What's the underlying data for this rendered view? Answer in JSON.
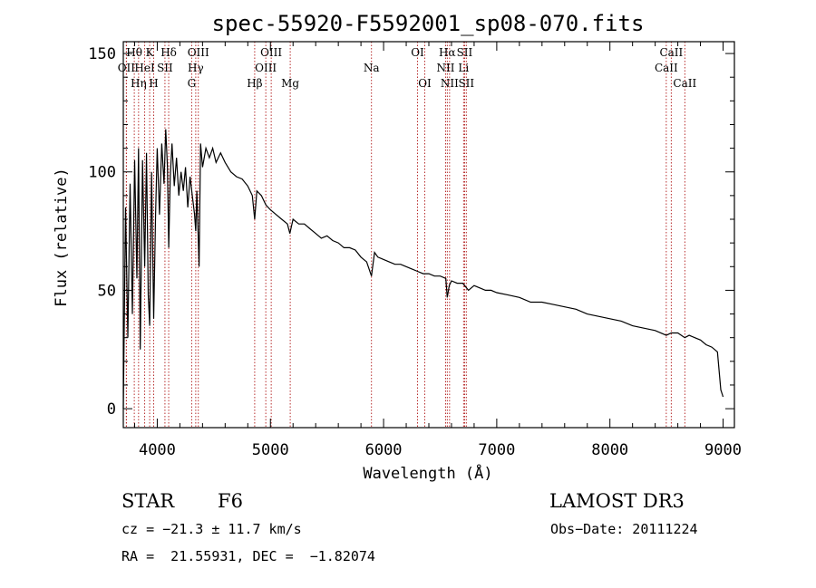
{
  "chart_data": {
    "type": "line",
    "title": "spec-55920-F5592001_sp08-070.fits",
    "xlabel": "Wavelength (Å)",
    "ylabel": "Flux (relative)",
    "xlim": [
      3700,
      9100
    ],
    "ylim": [
      -8,
      155
    ],
    "xticks": [
      4000,
      5000,
      6000,
      7000,
      8000,
      9000
    ],
    "yticks": [
      0,
      50,
      100,
      150
    ],
    "series": [
      {
        "name": "spectrum",
        "x": [
          3700,
          3720,
          3740,
          3760,
          3780,
          3800,
          3820,
          3835,
          3850,
          3870,
          3889,
          3905,
          3920,
          3933,
          3950,
          3968,
          3985,
          4000,
          4020,
          4040,
          4060,
          4075,
          4090,
          4101,
          4115,
          4130,
          4150,
          4170,
          4190,
          4210,
          4230,
          4250,
          4270,
          4290,
          4310,
          4330,
          4340,
          4350,
          4370,
          4383,
          4400,
          4430,
          4460,
          4490,
          4520,
          4560,
          4600,
          4650,
          4700,
          4750,
          4800,
          4840,
          4861,
          4880,
          4920,
          4960,
          5000,
          5050,
          5100,
          5150,
          5172,
          5200,
          5250,
          5300,
          5350,
          5400,
          5450,
          5500,
          5550,
          5600,
          5650,
          5700,
          5750,
          5800,
          5850,
          5893,
          5920,
          5950,
          6000,
          6050,
          6100,
          6150,
          6200,
          6250,
          6300,
          6350,
          6400,
          6450,
          6500,
          6550,
          6563,
          6580,
          6600,
          6650,
          6700,
          6750,
          6800,
          6850,
          6900,
          6950,
          7000,
          7100,
          7200,
          7300,
          7400,
          7500,
          7600,
          7700,
          7800,
          7900,
          8000,
          8100,
          8200,
          8300,
          8400,
          8498,
          8542,
          8600,
          8662,
          8700,
          8750,
          8800,
          8850,
          8900,
          8950,
          8980,
          9000
        ],
        "values": [
          0,
          85,
          30,
          95,
          40,
          105,
          55,
          110,
          25,
          105,
          60,
          108,
          48,
          35,
          100,
          38,
          82,
          110,
          82,
          112,
          95,
          118,
          102,
          68,
          98,
          112,
          94,
          106,
          90,
          100,
          92,
          102,
          85,
          98,
          90,
          82,
          75,
          92,
          60,
          112,
          102,
          110,
          106,
          110,
          104,
          108,
          104,
          100,
          98,
          97,
          94,
          90,
          80,
          92,
          90,
          86,
          84,
          82,
          80,
          78,
          74,
          80,
          78,
          78,
          76,
          74,
          72,
          73,
          71,
          70,
          68,
          68,
          67,
          64,
          62,
          56,
          66,
          64,
          63,
          62,
          61,
          61,
          60,
          59,
          58,
          57,
          57,
          56,
          56,
          55,
          47,
          52,
          54,
          53,
          53,
          50,
          52,
          51,
          50,
          50,
          49,
          48,
          47,
          45,
          45,
          44,
          43,
          42,
          40,
          39,
          38,
          37,
          35,
          34,
          33,
          31,
          32,
          32,
          30,
          31,
          30,
          29,
          27,
          26,
          24,
          8,
          5
        ]
      }
    ],
    "lines": [
      {
        "label": "OII",
        "x": 3727,
        "row": 2
      },
      {
        "label": "Hθ",
        "x": 3797,
        "row": 1
      },
      {
        "label": "OIII",
        "x": 3727,
        "row": 2,
        "hide": true
      },
      {
        "label": "Hη",
        "x": 3835,
        "row": 3
      },
      {
        "label": "HeI",
        "x": 3889,
        "row": 2
      },
      {
        "label": "K",
        "x": 3933,
        "row": 1
      },
      {
        "label": "H",
        "x": 3968,
        "row": 3
      },
      {
        "label": "SII",
        "x": 4068,
        "row": 2
      },
      {
        "label": "Hδ",
        "x": 4101,
        "row": 1
      },
      {
        "label": "G",
        "x": 4304,
        "row": 3
      },
      {
        "label": "Hγ",
        "x": 4340,
        "row": 2
      },
      {
        "label": "OIII",
        "x": 4363,
        "row": 1
      },
      {
        "label": "Hβ",
        "x": 4861,
        "row": 3
      },
      {
        "label": "OIII",
        "x": 4959,
        "row": 2
      },
      {
        "label": "OIII",
        "x": 5007,
        "row": 1
      },
      {
        "label": "Mg",
        "x": 5175,
        "row": 3
      },
      {
        "label": "Na",
        "x": 5893,
        "row": 2
      },
      {
        "label": "OI",
        "x": 6300,
        "row": 1
      },
      {
        "label": "OI",
        "x": 6364,
        "row": 3
      },
      {
        "label": "NII",
        "x": 6548,
        "row": 2
      },
      {
        "label": "Hα",
        "x": 6563,
        "row": 1
      },
      {
        "label": "NII",
        "x": 6583,
        "row": 3
      },
      {
        "label": "Li",
        "x": 6707,
        "row": 2
      },
      {
        "label": "SII",
        "x": 6716,
        "row": 1
      },
      {
        "label": "SII",
        "x": 6731,
        "row": 3
      },
      {
        "label": "CaII",
        "x": 8498,
        "row": 2
      },
      {
        "label": "CaII",
        "x": 8542,
        "row": 1
      },
      {
        "label": "CaII",
        "x": 8662,
        "row": 3
      }
    ]
  },
  "info": {
    "object_class": "STAR",
    "subclass": "F6",
    "survey": "LAMOST DR3",
    "redshift": "cz = −21.3 ± 11.7 km/s",
    "obs_date": "Obs−Date: 20111224",
    "coords": "RA =  21.55931, DEC =  −1.82074"
  }
}
